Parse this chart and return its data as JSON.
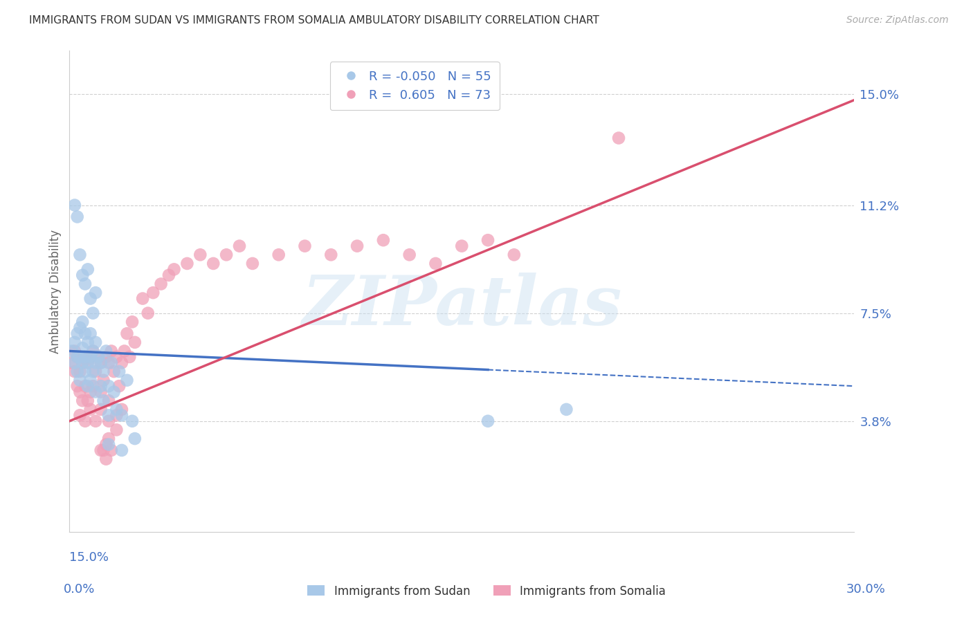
{
  "title": "IMMIGRANTS FROM SUDAN VS IMMIGRANTS FROM SOMALIA AMBULATORY DISABILITY CORRELATION CHART",
  "source": "Source: ZipAtlas.com",
  "ylabel": "Ambulatory Disability",
  "ytick_labels": [
    "15.0%",
    "11.2%",
    "7.5%",
    "3.8%"
  ],
  "ytick_values": [
    0.15,
    0.112,
    0.075,
    0.038
  ],
  "xmin": 0.0,
  "xmax": 0.3,
  "ymin": 0.0,
  "ymax": 0.165,
  "watermark_text": "ZIPatlas",
  "legend_sudan_R": "-0.050",
  "legend_sudan_N": "55",
  "legend_somalia_R": "0.605",
  "legend_somalia_N": "73",
  "color_sudan": "#a8c8e8",
  "color_somalia": "#f0a0b8",
  "color_sudan_line": "#4472c4",
  "color_somalia_line": "#d94f6e",
  "color_axis_labels": "#4472c4",
  "grid_color": "#d0d0d0",
  "background_color": "#ffffff",
  "sudan_line_x0": 0.0,
  "sudan_line_y0": 0.062,
  "sudan_line_x1_solid": 0.16,
  "sudan_line_y1_solid": 0.057,
  "sudan_line_x1_dash": 0.3,
  "sudan_line_y1_dash": 0.05,
  "somalia_line_x0": 0.0,
  "somalia_line_y0": 0.038,
  "somalia_line_x1": 0.3,
  "somalia_line_y1": 0.148,
  "sudan_x": [
    0.001,
    0.002,
    0.002,
    0.003,
    0.003,
    0.003,
    0.004,
    0.004,
    0.004,
    0.005,
    0.005,
    0.005,
    0.006,
    0.006,
    0.006,
    0.007,
    0.007,
    0.007,
    0.008,
    0.008,
    0.008,
    0.009,
    0.009,
    0.01,
    0.01,
    0.01,
    0.011,
    0.012,
    0.012,
    0.013,
    0.013,
    0.014,
    0.015,
    0.015,
    0.016,
    0.017,
    0.018,
    0.019,
    0.02,
    0.022,
    0.024,
    0.002,
    0.003,
    0.004,
    0.005,
    0.006,
    0.007,
    0.008,
    0.009,
    0.01,
    0.015,
    0.02,
    0.025,
    0.16,
    0.19
  ],
  "sudan_y": [
    0.062,
    0.058,
    0.065,
    0.055,
    0.06,
    0.068,
    0.052,
    0.06,
    0.07,
    0.058,
    0.063,
    0.072,
    0.055,
    0.06,
    0.068,
    0.05,
    0.058,
    0.065,
    0.052,
    0.06,
    0.068,
    0.055,
    0.062,
    0.048,
    0.058,
    0.065,
    0.06,
    0.05,
    0.058,
    0.045,
    0.055,
    0.062,
    0.04,
    0.05,
    0.058,
    0.048,
    0.042,
    0.055,
    0.04,
    0.052,
    0.038,
    0.112,
    0.108,
    0.095,
    0.088,
    0.085,
    0.09,
    0.08,
    0.075,
    0.082,
    0.03,
    0.028,
    0.032,
    0.038,
    0.042
  ],
  "somalia_x": [
    0.001,
    0.002,
    0.002,
    0.003,
    0.003,
    0.004,
    0.004,
    0.005,
    0.005,
    0.006,
    0.006,
    0.007,
    0.007,
    0.008,
    0.008,
    0.009,
    0.009,
    0.01,
    0.011,
    0.012,
    0.012,
    0.013,
    0.014,
    0.015,
    0.015,
    0.016,
    0.017,
    0.018,
    0.019,
    0.02,
    0.021,
    0.022,
    0.023,
    0.024,
    0.025,
    0.028,
    0.03,
    0.032,
    0.035,
    0.038,
    0.04,
    0.045,
    0.05,
    0.055,
    0.06,
    0.065,
    0.07,
    0.08,
    0.09,
    0.1,
    0.11,
    0.12,
    0.13,
    0.14,
    0.15,
    0.16,
    0.17,
    0.004,
    0.006,
    0.008,
    0.01,
    0.012,
    0.015,
    0.018,
    0.02,
    0.014,
    0.012,
    0.015,
    0.013,
    0.018,
    0.014,
    0.016,
    0.21
  ],
  "somalia_y": [
    0.058,
    0.055,
    0.062,
    0.05,
    0.06,
    0.048,
    0.055,
    0.045,
    0.058,
    0.05,
    0.06,
    0.045,
    0.058,
    0.048,
    0.06,
    0.05,
    0.062,
    0.055,
    0.06,
    0.048,
    0.058,
    0.052,
    0.06,
    0.045,
    0.058,
    0.062,
    0.055,
    0.06,
    0.05,
    0.058,
    0.062,
    0.068,
    0.06,
    0.072,
    0.065,
    0.08,
    0.075,
    0.082,
    0.085,
    0.088,
    0.09,
    0.092,
    0.095,
    0.092,
    0.095,
    0.098,
    0.092,
    0.095,
    0.098,
    0.095,
    0.098,
    0.1,
    0.095,
    0.092,
    0.098,
    0.1,
    0.095,
    0.04,
    0.038,
    0.042,
    0.038,
    0.042,
    0.038,
    0.04,
    0.042,
    0.03,
    0.028,
    0.032,
    0.028,
    0.035,
    0.025,
    0.028,
    0.135
  ]
}
